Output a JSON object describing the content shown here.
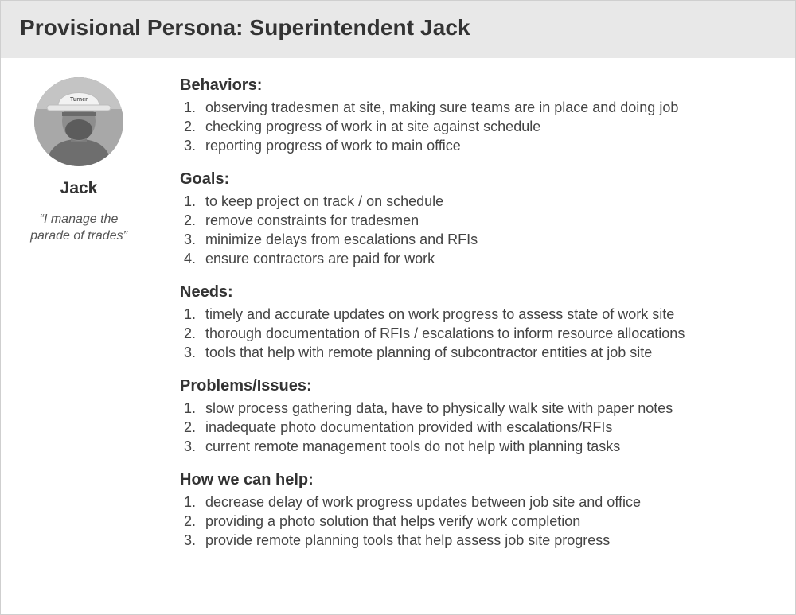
{
  "header": {
    "title": "Provisional Persona: Superintendent Jack"
  },
  "profile": {
    "name": "Jack",
    "quote_line1": "“I manage the",
    "quote_line2": "parade of trades”",
    "hat_text": "Turner"
  },
  "sections": [
    {
      "title": "Behaviors:",
      "items": [
        "observing tradesmen at site, making sure teams are in place and doing job",
        "checking progress of work in at site against schedule",
        "reporting progress of work to main office"
      ]
    },
    {
      "title": "Goals:",
      "items": [
        "to keep project on track / on schedule",
        "remove constraints for tradesmen",
        "minimize delays from escalations and RFIs",
        "ensure contractors are paid for work"
      ]
    },
    {
      "title": "Needs:",
      "items": [
        "timely and accurate updates on work progress to assess state of work site",
        "thorough documentation of RFIs / escalations to inform resource allocations",
        "tools that help with remote planning of subcontractor entities at job site"
      ]
    },
    {
      "title": "Problems/Issues:",
      "items": [
        "slow process gathering data, have to physically walk site with paper notes",
        "inadequate photo documentation provided with escalations/RFIs",
        "current remote management tools do not help with planning tasks"
      ]
    },
    {
      "title": "How we can help:",
      "items": [
        "decrease delay of work progress updates between job site and office",
        "providing a photo solution that helps verify work completion",
        "provide remote planning tools that help assess job site progress"
      ]
    }
  ],
  "colors": {
    "header_bg": "#e8e8e8",
    "text": "#333333",
    "border": "#cfcfcf"
  }
}
